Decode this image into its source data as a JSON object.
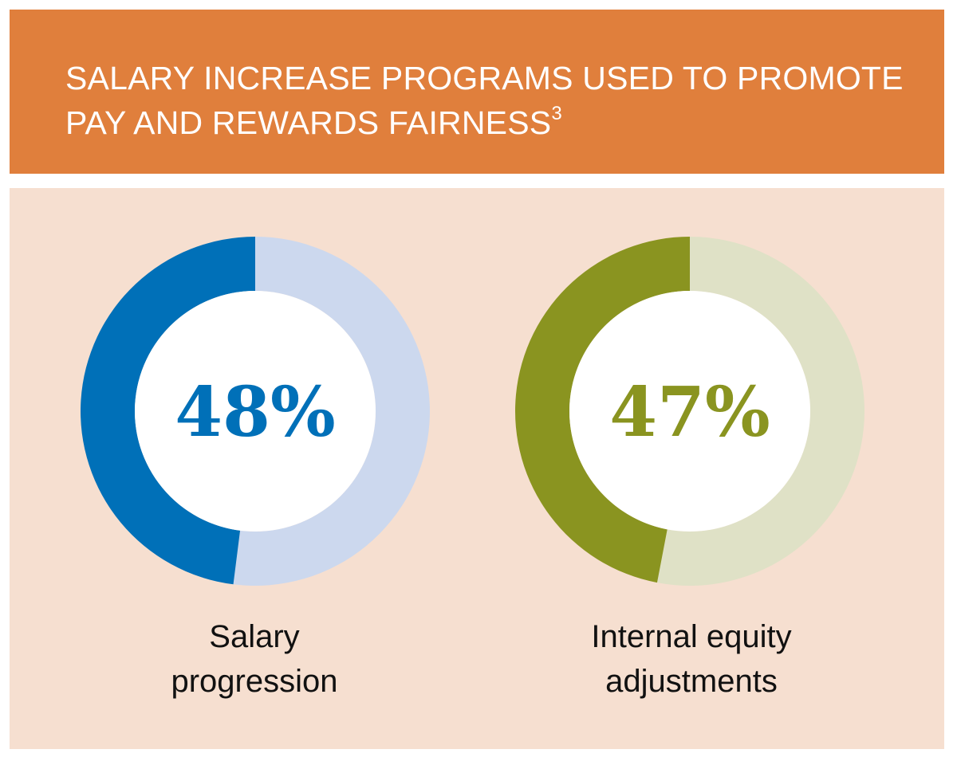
{
  "header": {
    "title": "SALARY INCREASE PROGRAMS USED TO PROMOTE PAY AND REWARDS FAIRNESS",
    "footnote": "3"
  },
  "colors": {
    "header_bg": "#E07F3C",
    "panel_bg": "#F6DFD0",
    "blue": "#0070B8",
    "blue_light": "#CCD8EE",
    "olive": "#8A9420",
    "olive_light": "#DFE1C6",
    "white": "#FFFFFF"
  },
  "chart_data": [
    {
      "type": "pie",
      "variant": "donut",
      "value": 48,
      "value_label": "48%",
      "label": "Salary\nprogression",
      "color": "#0070B8",
      "remainder_color": "#CCD8EE"
    },
    {
      "type": "pie",
      "variant": "donut",
      "value": 47,
      "value_label": "47%",
      "label": "Internal equity\nadjustments",
      "color": "#8A9420",
      "remainder_color": "#DFE1C6"
    }
  ]
}
